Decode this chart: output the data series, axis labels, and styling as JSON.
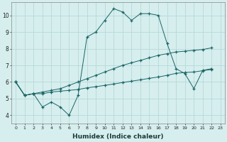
{
  "xlabel": "Humidex (Indice chaleur)",
  "background_color": "#d6eeee",
  "grid_color": "#b8d8d8",
  "line_color": "#1a6464",
  "xlim": [
    -0.5,
    23.5
  ],
  "ylim": [
    3.5,
    10.8
  ],
  "yticks": [
    4,
    5,
    6,
    7,
    8,
    9,
    10
  ],
  "xticks": [
    0,
    1,
    2,
    3,
    4,
    5,
    6,
    7,
    8,
    9,
    10,
    11,
    12,
    13,
    14,
    15,
    16,
    17,
    18,
    19,
    20,
    21,
    22,
    23
  ],
  "line1_x": [
    0,
    1,
    2,
    3,
    4,
    5,
    6,
    7,
    8,
    9,
    10,
    11,
    12,
    13,
    14,
    15,
    16,
    17,
    18,
    19,
    20,
    21,
    22
  ],
  "line1_y": [
    6.0,
    5.2,
    5.3,
    4.5,
    4.8,
    4.5,
    4.0,
    5.2,
    8.7,
    9.0,
    9.7,
    10.4,
    10.2,
    9.7,
    10.1,
    10.1,
    10.0,
    8.3,
    6.8,
    6.5,
    5.6,
    6.7,
    6.8
  ],
  "line2_x": [
    0,
    1,
    2,
    3,
    4,
    5,
    6,
    7,
    8,
    9,
    10,
    11,
    12,
    13,
    14,
    15,
    16,
    17,
    18,
    19,
    20,
    21,
    22
  ],
  "line2_y": [
    6.0,
    5.2,
    5.3,
    5.4,
    5.5,
    5.6,
    5.8,
    6.0,
    6.2,
    6.4,
    6.6,
    6.8,
    7.0,
    7.15,
    7.3,
    7.45,
    7.6,
    7.7,
    7.8,
    7.85,
    7.9,
    7.95,
    8.05
  ],
  "line3_x": [
    0,
    1,
    2,
    3,
    4,
    5,
    6,
    7,
    8,
    9,
    10,
    11,
    12,
    13,
    14,
    15,
    16,
    17,
    18,
    19,
    20,
    21,
    22
  ],
  "line3_y": [
    6.0,
    5.2,
    5.3,
    5.3,
    5.4,
    5.45,
    5.5,
    5.55,
    5.65,
    5.72,
    5.8,
    5.88,
    5.97,
    6.05,
    6.13,
    6.22,
    6.3,
    6.4,
    6.52,
    6.57,
    6.6,
    6.68,
    6.75
  ],
  "xlabel_fontsize": 6.5,
  "tick_fontsize_x": 4.5,
  "tick_fontsize_y": 5.5
}
